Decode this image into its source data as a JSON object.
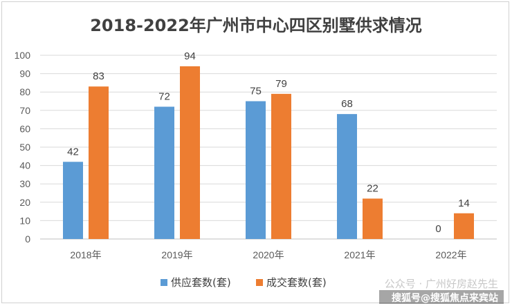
{
  "chart_data": {
    "type": "bar",
    "title": "2018-2022年广州市中心四区别墅供求情况",
    "categories": [
      "2018年",
      "2019年",
      "2020年",
      "2021年",
      "2022年"
    ],
    "series": [
      {
        "name": "供应套数(套)",
        "color": "#5B9BD5",
        "values": [
          42,
          72,
          75,
          68,
          0
        ]
      },
      {
        "name": "成交套数(套)",
        "color": "#ED7D31",
        "values": [
          83,
          94,
          79,
          22,
          14
        ]
      }
    ],
    "ylim": [
      0,
      100
    ],
    "yticks": [
      0,
      10,
      20,
      30,
      40,
      50,
      60,
      70,
      80,
      90,
      100
    ],
    "grid": true,
    "legend_position": "bottom",
    "data_labels": true
  },
  "watermark": {
    "text1": "公众号 · 广州好房赵先生",
    "text2": "搜狐号@搜狐焦点来宾站"
  }
}
